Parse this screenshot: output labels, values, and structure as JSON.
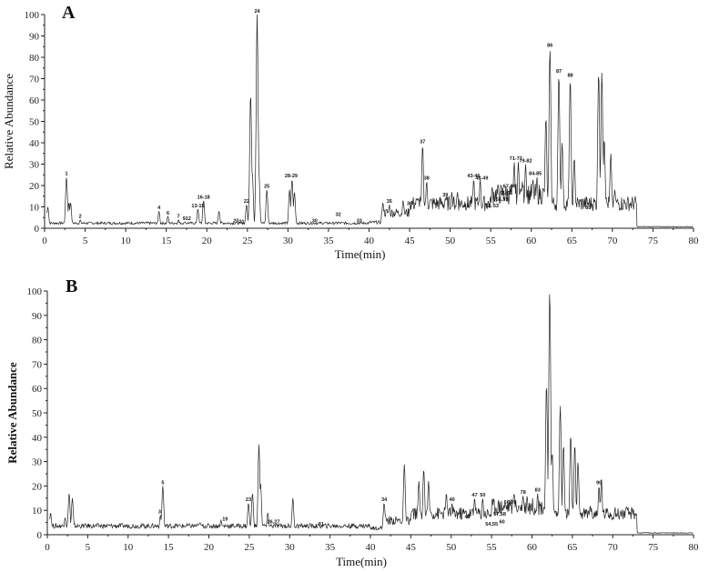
{
  "chart_data": [
    {
      "panel": "A",
      "type": "line",
      "title": "A",
      "xlabel": "Time(min)",
      "ylabel": "Relative Abundance",
      "xlim": [
        0,
        80
      ],
      "ylim": [
        0,
        100
      ],
      "xticks": [
        0,
        5,
        10,
        15,
        20,
        25,
        30,
        35,
        40,
        45,
        50,
        55,
        60,
        65,
        70,
        75,
        80
      ],
      "yticks": [
        0,
        10,
        20,
        30,
        40,
        50,
        60,
        70,
        80,
        90,
        100
      ],
      "grid": false,
      "peaks": [
        [
          0.4,
          10
        ],
        [
          2.7,
          24
        ],
        [
          3.0,
          12
        ],
        [
          3.2,
          12
        ],
        [
          4.4,
          4
        ],
        [
          14.1,
          8
        ],
        [
          15.2,
          5.5
        ],
        [
          16.5,
          4
        ],
        [
          17.3,
          3
        ],
        [
          18.9,
          9
        ],
        [
          19.6,
          13
        ],
        [
          21.5,
          8
        ],
        [
          24.9,
          11
        ],
        [
          25.4,
          63
        ],
        [
          25.6,
          27
        ],
        [
          26.2,
          100
        ],
        [
          26.4,
          28
        ],
        [
          27.4,
          18
        ],
        [
          30.2,
          18
        ],
        [
          30.5,
          23
        ],
        [
          30.8,
          17
        ],
        [
          36.2,
          3
        ],
        [
          41.7,
          12
        ],
        [
          42.5,
          11
        ],
        [
          44.2,
          13
        ],
        [
          45.3,
          12
        ],
        [
          46.1,
          14
        ],
        [
          46.6,
          39
        ],
        [
          47.1,
          22
        ],
        [
          49.4,
          14
        ],
        [
          50.2,
          17
        ],
        [
          50.9,
          17
        ],
        [
          52.0,
          9
        ],
        [
          52.9,
          23
        ],
        [
          53.7,
          23
        ],
        [
          55.8,
          9
        ],
        [
          56.9,
          12
        ],
        [
          57.3,
          14
        ],
        [
          57.9,
          31
        ],
        [
          58.4,
          31
        ],
        [
          58.9,
          22
        ],
        [
          59.3,
          30
        ],
        [
          60.2,
          23
        ],
        [
          60.7,
          24
        ],
        [
          61.8,
          52
        ],
        [
          62.3,
          84
        ],
        [
          63.4,
          72
        ],
        [
          63.8,
          40
        ],
        [
          64.8,
          70
        ],
        [
          65.3,
          33
        ],
        [
          66.8,
          4
        ],
        [
          67.3,
          8
        ],
        [
          68.3,
          73
        ],
        [
          68.7,
          73
        ],
        [
          69.0,
          42
        ],
        [
          69.8,
          35
        ],
        [
          70.3,
          18
        ],
        [
          72.2,
          9
        ],
        [
          73.0,
          1
        ]
      ],
      "peak_labels": [
        {
          "label": "1",
          "x": 2.7,
          "y": 24
        },
        {
          "label": "2",
          "x": 4.4,
          "y": 4
        },
        {
          "label": "4",
          "x": 14.1,
          "y": 8
        },
        {
          "label": "6",
          "x": 15.2,
          "y": 5.5
        },
        {
          "label": "7",
          "x": 16.5,
          "y": 4
        },
        {
          "label": "9",
          "x": 17.2,
          "y": 3
        },
        {
          "label": "12",
          "x": 17.7,
          "y": 3
        },
        {
          "label": "13-15",
          "x": 18.9,
          "y": 9
        },
        {
          "label": "16-18",
          "x": 19.6,
          "y": 13
        },
        {
          "label": "20",
          "x": 23.6,
          "y": 2
        },
        {
          "label": "21",
          "x": 24.3,
          "y": 1.5
        },
        {
          "label": "22",
          "x": 24.9,
          "y": 11
        },
        {
          "label": "24",
          "x": 26.2,
          "y": 100
        },
        {
          "label": "25",
          "x": 27.4,
          "y": 18
        },
        {
          "label": "28-29",
          "x": 30.4,
          "y": 23
        },
        {
          "label": "30",
          "x": 33.3,
          "y": 2
        },
        {
          "label": "32",
          "x": 36.2,
          "y": 5
        },
        {
          "label": "33",
          "x": 38.8,
          "y": 2
        },
        {
          "label": "35",
          "x": 42.5,
          "y": 11
        },
        {
          "label": "36",
          "x": 45.0,
          "y": 10
        },
        {
          "label": "37",
          "x": 46.6,
          "y": 39
        },
        {
          "label": "38",
          "x": 47.1,
          "y": 22
        },
        {
          "label": "39",
          "x": 49.4,
          "y": 14
        },
        {
          "label": "41",
          "x": 52.0,
          "y": 9
        },
        {
          "label": "43-46",
          "x": 52.9,
          "y": 23
        },
        {
          "label": "48-49",
          "x": 53.9,
          "y": 22
        },
        {
          "label": "51-53",
          "x": 55.2,
          "y": 9
        },
        {
          "label": "56,59",
          "x": 56.4,
          "y": 12
        },
        {
          "label": "61-65",
          "x": 56.9,
          "y": 15
        },
        {
          "label": "67-69",
          "x": 57.3,
          "y": 18
        },
        {
          "label": "71-77",
          "x": 58.1,
          "y": 31
        },
        {
          "label": "79-82",
          "x": 59.3,
          "y": 30
        },
        {
          "label": "84-85",
          "x": 60.5,
          "y": 24
        },
        {
          "label": "86",
          "x": 62.3,
          "y": 84
        },
        {
          "label": "87",
          "x": 63.4,
          "y": 72
        },
        {
          "label": "88",
          "x": 64.8,
          "y": 70
        },
        {
          "label": "89",
          "x": 67.0,
          "y": 8
        }
      ]
    },
    {
      "panel": "B",
      "type": "line",
      "title": "B",
      "xlabel": "Time(min)",
      "ylabel": "Relative Abundance",
      "xlim": [
        0,
        80
      ],
      "ylim": [
        0,
        100
      ],
      "xticks": [
        0,
        5,
        10,
        15,
        20,
        25,
        30,
        35,
        40,
        45,
        50,
        55,
        60,
        65,
        70,
        75,
        80
      ],
      "yticks": [
        0,
        10,
        20,
        30,
        40,
        50,
        60,
        70,
        80,
        90,
        100
      ],
      "grid": false,
      "peaks": [
        [
          0.4,
          9
        ],
        [
          2.2,
          7
        ],
        [
          2.7,
          17
        ],
        [
          3.1,
          15
        ],
        [
          14.0,
          8
        ],
        [
          14.3,
          20
        ],
        [
          17.3,
          4
        ],
        [
          18.9,
          5
        ],
        [
          21.5,
          6
        ],
        [
          24.9,
          13
        ],
        [
          25.4,
          17
        ],
        [
          26.2,
          37
        ],
        [
          26.4,
          21
        ],
        [
          27.3,
          9
        ],
        [
          30.4,
          15
        ],
        [
          33.9,
          3
        ],
        [
          41.7,
          13
        ],
        [
          44.2,
          29
        ],
        [
          46.0,
          22
        ],
        [
          46.6,
          27
        ],
        [
          47.2,
          22
        ],
        [
          49.4,
          17
        ],
        [
          50.1,
          13
        ],
        [
          52.0,
          6
        ],
        [
          52.9,
          15
        ],
        [
          53.9,
          15
        ],
        [
          55.9,
          8
        ],
        [
          57.3,
          12
        ],
        [
          57.8,
          17
        ],
        [
          58.9,
          16
        ],
        [
          59.4,
          16
        ],
        [
          60.7,
          17
        ],
        [
          61.8,
          62
        ],
        [
          62.2,
          100
        ],
        [
          62.5,
          34
        ],
        [
          63.5,
          53
        ],
        [
          63.9,
          37
        ],
        [
          64.8,
          41
        ],
        [
          65.3,
          37
        ],
        [
          65.7,
          30
        ],
        [
          67.2,
          12
        ],
        [
          68.3,
          20
        ],
        [
          68.6,
          23
        ],
        [
          69.3,
          8
        ],
        [
          70.2,
          5
        ],
        [
          71.5,
          3
        ],
        [
          73.0,
          1
        ]
      ],
      "peak_labels": [
        {
          "label": "3",
          "x": 13.9,
          "y": 8
        },
        {
          "label": "5",
          "x": 14.3,
          "y": 20
        },
        {
          "label": "19",
          "x": 22.0,
          "y": 5
        },
        {
          "label": "23",
          "x": 24.9,
          "y": 13
        },
        {
          "label": "26,27",
          "x": 28.0,
          "y": 4
        },
        {
          "label": "31",
          "x": 33.9,
          "y": 3
        },
        {
          "label": "34",
          "x": 41.7,
          "y": 13
        },
        {
          "label": "40",
          "x": 50.1,
          "y": 13
        },
        {
          "label": "42",
          "x": 52.0,
          "y": 6
        },
        {
          "label": "47",
          "x": 52.9,
          "y": 15
        },
        {
          "label": "50",
          "x": 53.9,
          "y": 15
        },
        {
          "label": "54,55",
          "x": 55.0,
          "y": 3
        },
        {
          "label": "57,58",
          "x": 56.0,
          "y": 7
        },
        {
          "label": "60",
          "x": 56.3,
          "y": 4
        },
        {
          "label": "66,70",
          "x": 57.3,
          "y": 12
        },
        {
          "label": "78",
          "x": 58.9,
          "y": 16
        },
        {
          "label": "83",
          "x": 60.7,
          "y": 17
        },
        {
          "label": "90",
          "x": 68.3,
          "y": 20
        }
      ]
    }
  ]
}
